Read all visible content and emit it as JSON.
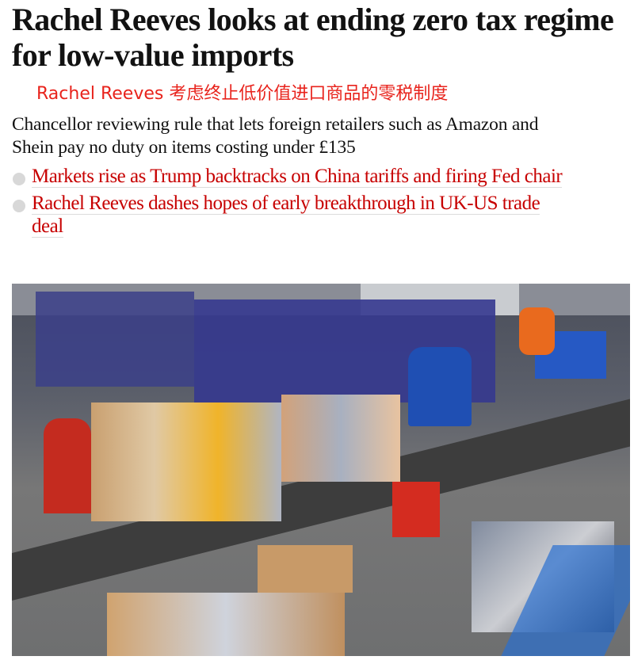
{
  "article": {
    "headline": "Rachel Reeves looks at ending zero tax regime for low-value imports",
    "headline_translation": "Rachel Reeves 考虑终止低价值进口商品的零税制度",
    "standfirst": "Chancellor reviewing rule that lets foreign retailers such as Amazon and Shein pay no duty on items costing under £135",
    "related_links": [
      {
        "label": "Markets rise as Trump backtracks on China tariffs and firing Fed chair"
      },
      {
        "label": "Rachel Reeves dashes hopes of early breakthrough in UK-US trade deal"
      }
    ],
    "colors": {
      "link": "#c70000",
      "translation": "#e8231c",
      "bullet": "#d8d8d8"
    }
  }
}
